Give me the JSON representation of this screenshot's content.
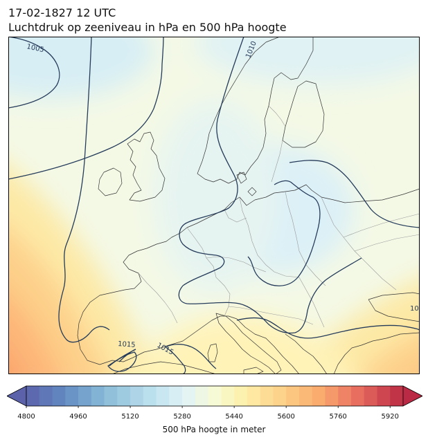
{
  "header": {
    "datetime": "17-02-1827 12 UTC",
    "title": "Luchtdruk op zeeniveau in hPa en 500 hPa hoogte"
  },
  "map": {
    "region": "Europe",
    "fields": [
      "500 hPa geopotential height (filled)",
      "mean sea level pressure isobars (hPa)"
    ],
    "isobar_labels": [
      "1005",
      "1010",
      "1015",
      "1015",
      "10"
    ],
    "isobar_color": "#253b5a",
    "coastline_color": "#333333",
    "border_color": "#9a9a9a"
  },
  "colorbar": {
    "label": "500 hPa hoogte in meter",
    "ticks": [
      "4800",
      "4960",
      "5120",
      "5280",
      "5440",
      "5600",
      "5760",
      "5920"
    ],
    "min": 4800,
    "max": 5960,
    "step": 40,
    "colormap": "RdYlBu_r",
    "extend": "both"
  }
}
